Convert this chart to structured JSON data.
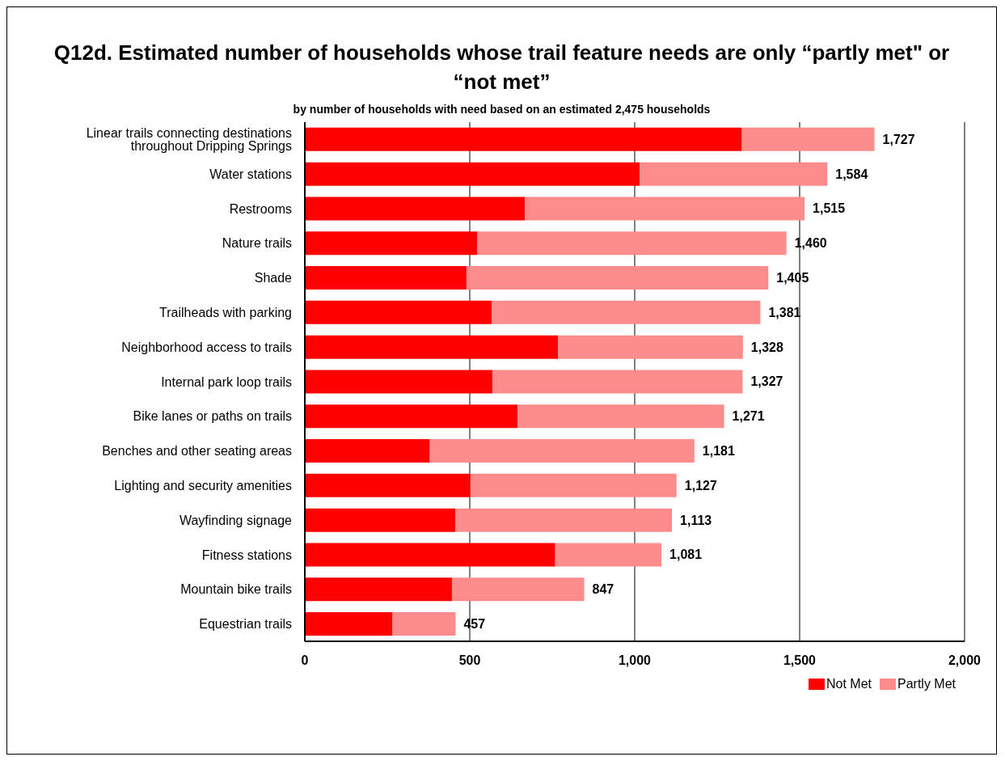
{
  "chart_data": {
    "type": "bar",
    "orientation": "horizontal",
    "stacked": true,
    "title": "Q12d. Estimated number of households whose trail feature needs are only “partly met\" or “not met”",
    "subtitle": "by number of households with need based on an estimated 2,475 households",
    "categories": [
      "Linear trails connecting destinations throughout Dripping Springs",
      "Water stations",
      "Restrooms",
      "Nature trails",
      "Shade",
      "Trailheads with parking",
      "Neighborhood access to trails",
      "Internal park loop trails",
      "Bike lanes or paths on trails",
      "Benches and other seating areas",
      "Lighting and security amenities",
      "Wayfinding signage",
      "Fitness stations",
      "Mountain bike trails",
      "Equestrian trails"
    ],
    "series": [
      {
        "name": "Not Met",
        "color": "#ff0000",
        "values": [
          1325,
          1015,
          667,
          522,
          490,
          567,
          768,
          569,
          645,
          379,
          502,
          456,
          759,
          446,
          266
        ]
      },
      {
        "name": "Partly Met",
        "color": "#ff8c8c",
        "values": [
          402,
          569,
          848,
          938,
          915,
          814,
          560,
          758,
          626,
          802,
          625,
          657,
          322,
          401,
          191
        ]
      }
    ],
    "totals": [
      "1,727",
      "1,584",
      "1,515",
      "1,460",
      "1,405",
      "1,381",
      "1,328",
      "1,327",
      "1,271",
      "1,181",
      "1,127",
      "1,113",
      "1,081",
      "847",
      "457"
    ],
    "xlim": [
      0,
      2000
    ],
    "xticks": [
      0,
      {
        "value": 500,
        "label": "500"
      },
      {
        "value": 1000,
        "label": "1,000"
      },
      {
        "value": 1500,
        "label": "1,500"
      },
      {
        "value": 2000,
        "label": "2,000"
      }
    ],
    "grid": "x",
    "legend": "bottom right"
  }
}
